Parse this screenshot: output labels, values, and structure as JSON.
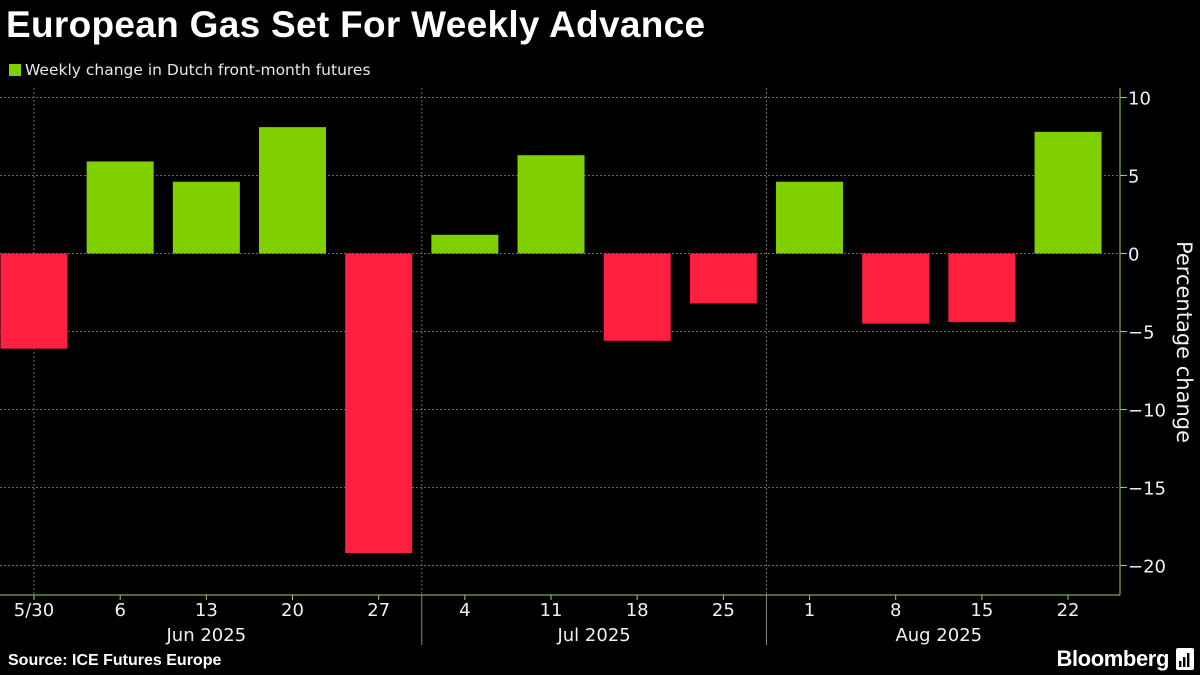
{
  "title": "European Gas Set For Weekly Advance",
  "source": "Source: ICE Futures Europe",
  "brand": "Bloomberg",
  "colors": {
    "positive": "#80d000",
    "negative": "#ff2040",
    "grid": "#6a6a6a",
    "axis": "#9bd05a",
    "background": "#000000"
  },
  "chart_data": {
    "type": "bar",
    "title": "European Gas Set For Weekly Advance",
    "legend": [
      {
        "name": "Weekly change in Dutch front-month futures",
        "color": "#80d000"
      }
    ],
    "xlabel": "",
    "ylabel": "Percentage change",
    "ylim": [
      -21,
      10.5
    ],
    "yticks": [
      10,
      5,
      0,
      -5,
      -10,
      -15,
      -20
    ],
    "grid": true,
    "categories": [
      "5/30",
      "6",
      "13",
      "20",
      "27",
      "4",
      "11",
      "18",
      "25",
      "1",
      "8",
      "15",
      "22"
    ],
    "values": [
      -6.1,
      5.9,
      4.6,
      8.1,
      -19.2,
      1.2,
      6.3,
      -5.6,
      -3.2,
      4.6,
      -4.5,
      -4.4,
      7.8
    ],
    "month_groups": [
      {
        "label": "Jun 2025",
        "start": 0,
        "end": 4
      },
      {
        "label": "Jul 2025",
        "start": 5,
        "end": 8
      },
      {
        "label": "Aug 2025",
        "start": 9,
        "end": 12
      }
    ]
  }
}
